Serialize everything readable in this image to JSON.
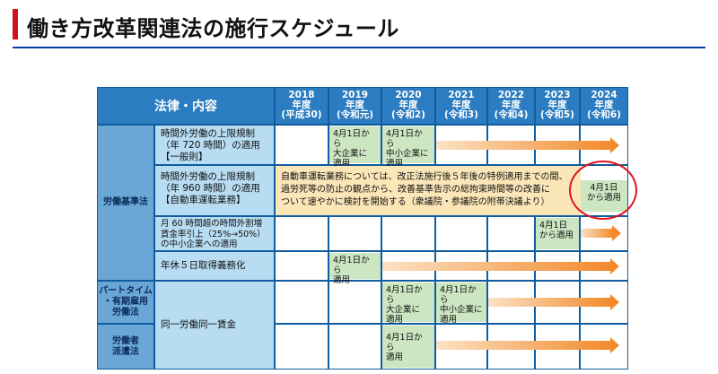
{
  "title": "働き方改革関連法の施行スケジュール",
  "header": {
    "law_label": "法律・内容",
    "years": [
      {
        "year": "2018",
        "label": "年度",
        "era": "(平成30)"
      },
      {
        "year": "2019",
        "label": "年度",
        "era": "(令和元)"
      },
      {
        "year": "2020",
        "label": "年度",
        "era": "(令和2)"
      },
      {
        "year": "2021",
        "label": "年度",
        "era": "(令和3)"
      },
      {
        "year": "2022",
        "label": "年度",
        "era": "(令和4)"
      },
      {
        "year": "2023",
        "label": "年度",
        "era": "(令和5)"
      },
      {
        "year": "2024",
        "label": "年度",
        "era": "(令和6)"
      }
    ]
  },
  "categories": {
    "labor_standards": "労働基準法",
    "part_time": "パートタイム\n・有期雇用\n労働法",
    "dispatch": "労働者\n派遣法"
  },
  "items": {
    "overtime_general": "時間外労働の上限規制\n（年 720 時間）の適用\n【一般則】",
    "overtime_driving": "時間外労働の上限規制\n（年 960 時間）の適用\n【自動車運転業務】",
    "premium_rate": "月 60 時間超の時間外割増\n賃金率引上（25%→50%）\nの中小企業への適用",
    "paid_leave": "年休５日取得義務化",
    "equal_pay": "同一労働同一賃金"
  },
  "boxes": {
    "general_large": "4月1日から\n大企業に\n適用",
    "general_sme": "4月1日から\n中小企業に\n適用",
    "driving_note": "自動車運転業務については、改正法施行後５年後の特例適用までの間、\n過労死等の防止の観点から、改善基準告示の総拘束時間等の改善に\nついて速やかに検討を開始する（衆議院・参議院の附帯決議より）",
    "driving_apply": "4月1日\nから適用",
    "premium_apply": "4月1日\nから適用",
    "leave_apply": "4月1日から\n適用",
    "pt_large": "4月1日から\n大企業に\n適用",
    "pt_sme": "4月1日から\n中小企業に\n適用",
    "dispatch_apply": "4月1日から\n適用"
  }
}
